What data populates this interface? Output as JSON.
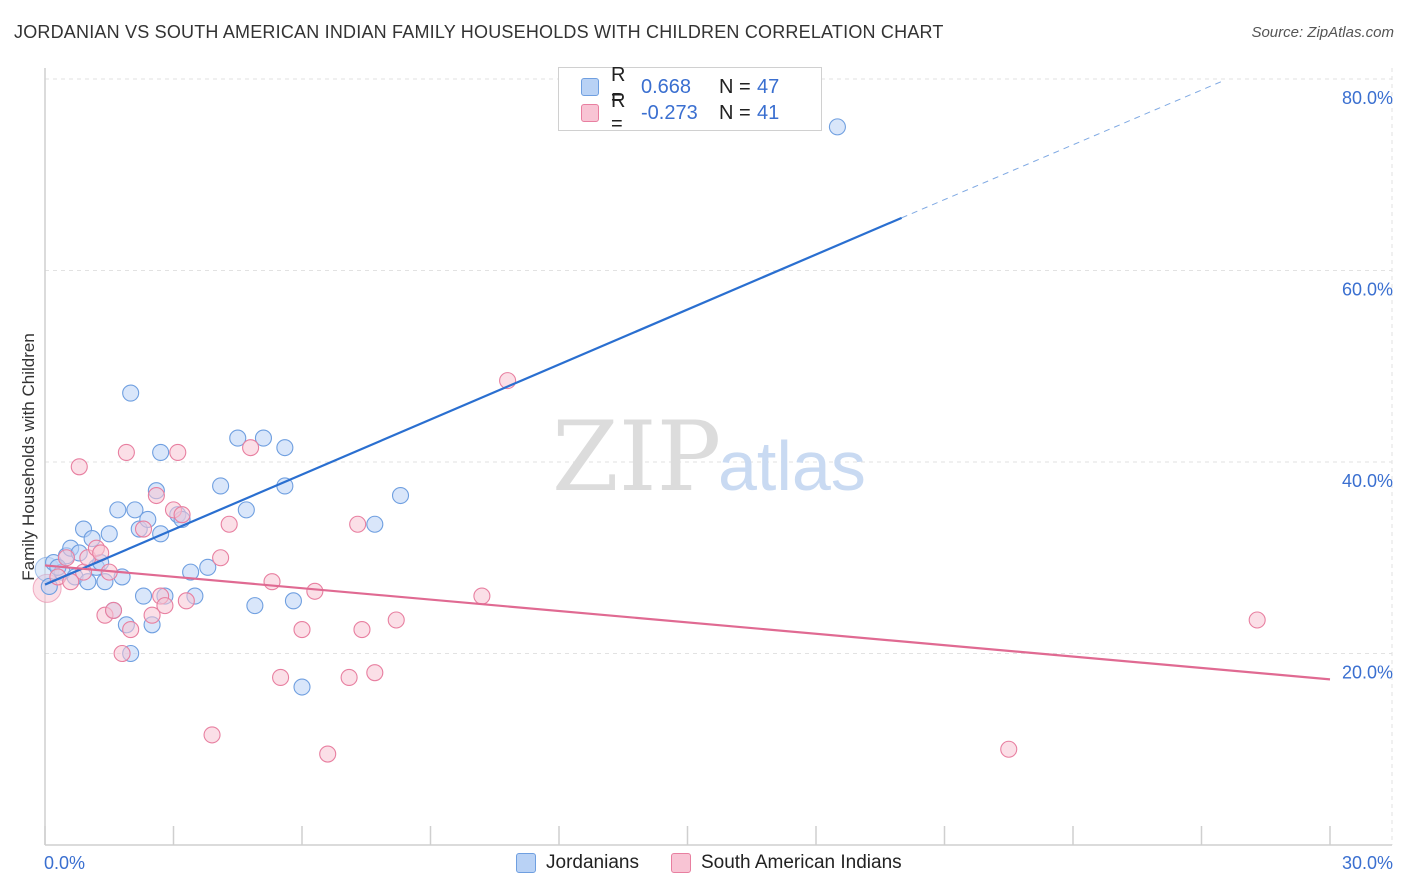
{
  "title": "JORDANIAN VS SOUTH AMERICAN INDIAN FAMILY HOUSEHOLDS WITH CHILDREN CORRELATION CHART",
  "source": "Source: ZipAtlas.com",
  "watermark": {
    "part1": "ZIP",
    "part2": "atlas"
  },
  "legend": {
    "series": [
      {
        "name": "Jordanians",
        "r_label": "R =",
        "r_value": "0.668",
        "n_label": "N =",
        "n_value": "47",
        "color": "#6f9fe0",
        "fill": "#b9d2f5"
      },
      {
        "name": "South American Indians",
        "r_label": "R =",
        "r_value": "-0.273",
        "n_label": "N =",
        "n_value": "41",
        "color": "#e87fa0",
        "fill": "#f8c4d4"
      }
    ]
  },
  "chart_data": {
    "type": "scatter",
    "title": "JORDANIAN VS SOUTH AMERICAN INDIAN FAMILY HOUSEHOLDS WITH CHILDREN CORRELATION CHART",
    "xlabel": "",
    "ylabel": "Family Households with Children",
    "xlim": [
      0,
      30
    ],
    "ylim": [
      0,
      80
    ],
    "x_tick_labels": [
      "0.0%",
      "30.0%"
    ],
    "y_ticks": [
      20,
      40,
      60,
      80
    ],
    "y_tick_labels": [
      "20.0%",
      "40.0%",
      "60.0%",
      "80.0%"
    ],
    "series": [
      {
        "name": "Jordanians",
        "color": "#6f9fe0",
        "fill": "#b9d2f5",
        "trend": {
          "x0": 0,
          "y0": 27.2,
          "x1": 20.0,
          "y1": 65.5,
          "dash_to_x": 27.5,
          "dash_to_y": 79.8,
          "color": "#2a6fd0"
        },
        "points": [
          [
            0.1,
            27.0
          ],
          [
            0.2,
            29.5
          ],
          [
            0.4,
            28.5
          ],
          [
            0.5,
            30.2
          ],
          [
            0.6,
            31.0
          ],
          [
            0.7,
            28.0
          ],
          [
            0.8,
            30.5
          ],
          [
            0.9,
            33.0
          ],
          [
            1.0,
            27.5
          ],
          [
            1.1,
            32.0
          ],
          [
            1.2,
            29.0
          ],
          [
            1.4,
            27.5
          ],
          [
            1.5,
            32.5
          ],
          [
            1.6,
            24.5
          ],
          [
            1.7,
            35.0
          ],
          [
            1.8,
            28.0
          ],
          [
            1.9,
            23.0
          ],
          [
            2.0,
            20.0
          ],
          [
            2.0,
            47.2
          ],
          [
            2.1,
            35.0
          ],
          [
            2.2,
            33.0
          ],
          [
            2.3,
            26.0
          ],
          [
            2.4,
            34.0
          ],
          [
            2.5,
            23.0
          ],
          [
            2.6,
            37.0
          ],
          [
            2.7,
            41.0
          ],
          [
            2.8,
            26.0
          ],
          [
            3.1,
            34.5
          ],
          [
            3.4,
            28.5
          ],
          [
            3.5,
            26.0
          ],
          [
            3.8,
            29.0
          ],
          [
            4.1,
            37.5
          ],
          [
            4.5,
            42.5
          ],
          [
            4.7,
            35.0
          ],
          [
            4.9,
            25.0
          ],
          [
            5.1,
            42.5
          ],
          [
            5.6,
            37.5
          ],
          [
            5.6,
            41.5
          ],
          [
            5.8,
            25.5
          ],
          [
            6.0,
            16.5
          ],
          [
            7.7,
            33.5
          ],
          [
            8.3,
            36.5
          ],
          [
            18.5,
            75.0
          ],
          [
            3.2,
            34.0
          ],
          [
            1.3,
            29.5
          ],
          [
            0.3,
            29.0
          ],
          [
            2.7,
            32.5
          ]
        ]
      },
      {
        "name": "South American Indians",
        "color": "#e87fa0",
        "fill": "#f8c4d4",
        "trend": {
          "x0": 0,
          "y0": 29.2,
          "x1": 30.0,
          "y1": 17.3,
          "color": "#e06a92"
        },
        "points": [
          [
            0.3,
            28.0
          ],
          [
            0.5,
            30.0
          ],
          [
            0.6,
            27.5
          ],
          [
            0.8,
            39.5
          ],
          [
            0.9,
            28.5
          ],
          [
            1.0,
            30.0
          ],
          [
            1.2,
            31.0
          ],
          [
            1.3,
            30.5
          ],
          [
            1.4,
            24.0
          ],
          [
            1.5,
            28.5
          ],
          [
            1.6,
            24.5
          ],
          [
            1.8,
            20.0
          ],
          [
            1.9,
            41.0
          ],
          [
            2.0,
            22.5
          ],
          [
            2.3,
            33.0
          ],
          [
            2.5,
            24.0
          ],
          [
            2.6,
            36.5
          ],
          [
            2.7,
            26.0
          ],
          [
            2.8,
            25.0
          ],
          [
            3.0,
            35.0
          ],
          [
            3.1,
            41.0
          ],
          [
            3.2,
            34.5
          ],
          [
            3.3,
            25.5
          ],
          [
            3.9,
            11.5
          ],
          [
            4.3,
            33.5
          ],
          [
            4.8,
            41.5
          ],
          [
            5.3,
            27.5
          ],
          [
            5.5,
            17.5
          ],
          [
            6.0,
            22.5
          ],
          [
            6.3,
            26.5
          ],
          [
            6.6,
            9.5
          ],
          [
            7.1,
            17.5
          ],
          [
            7.3,
            33.5
          ],
          [
            7.4,
            22.5
          ],
          [
            7.7,
            18.0
          ],
          [
            8.2,
            23.5
          ],
          [
            10.2,
            26.0
          ],
          [
            10.8,
            48.5
          ],
          [
            22.5,
            10.0
          ],
          [
            28.3,
            23.5
          ],
          [
            4.1,
            30.0
          ]
        ]
      }
    ]
  }
}
